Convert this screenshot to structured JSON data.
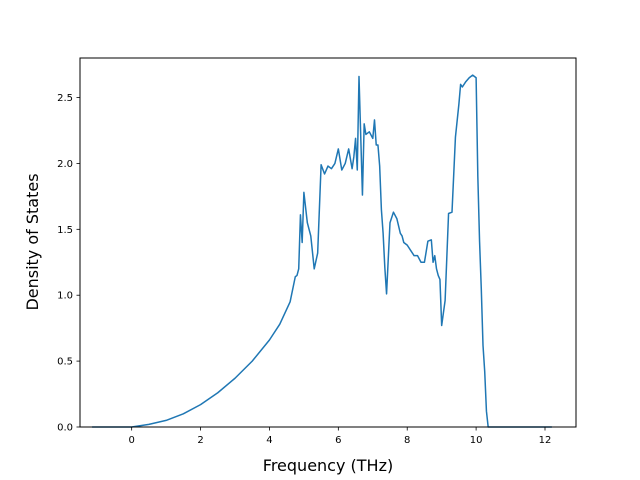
{
  "chart_data": {
    "type": "line",
    "title": "",
    "xlabel": "Frequency (THz)",
    "ylabel": "Density of States",
    "xlim": [
      -1.5,
      12.9
    ],
    "ylim": [
      0.0,
      2.8
    ],
    "xticks": [
      0,
      2,
      4,
      6,
      8,
      10,
      12
    ],
    "xtick_labels": [
      "0",
      "2",
      "4",
      "6",
      "8",
      "10",
      "12"
    ],
    "yticks": [
      0.0,
      0.5,
      1.0,
      1.5,
      2.0,
      2.5
    ],
    "ytick_labels": [
      "0.0",
      "0.5",
      "1.0",
      "1.5",
      "2.0",
      "2.5"
    ],
    "grid": false,
    "line_color": "#1f77b4",
    "series": [
      {
        "x": [
          -1.15,
          -0.5,
          0.0,
          0.5,
          1.0,
          1.5,
          2.0,
          2.5,
          3.0,
          3.5,
          4.0,
          4.3,
          4.6,
          4.75,
          4.8,
          4.85,
          4.9,
          4.95,
          5.0,
          5.1,
          5.2,
          5.3,
          5.4,
          5.5,
          5.6,
          5.7,
          5.8,
          5.9,
          6.0,
          6.1,
          6.2,
          6.3,
          6.4,
          6.45,
          6.5,
          6.55,
          6.6,
          6.7,
          6.75,
          6.8,
          6.9,
          7.0,
          7.05,
          7.1,
          7.15,
          7.2,
          7.25,
          7.3,
          7.35,
          7.4,
          7.5,
          7.6,
          7.7,
          7.8,
          7.85,
          7.9,
          8.0,
          8.1,
          8.2,
          8.3,
          8.4,
          8.5,
          8.6,
          8.7,
          8.75,
          8.8,
          8.85,
          8.9,
          8.95,
          9.0,
          9.1,
          9.2,
          9.3,
          9.4,
          9.5,
          9.55,
          9.6,
          9.7,
          9.8,
          9.9,
          10.0,
          10.05,
          10.1,
          10.15,
          10.2,
          10.25,
          10.3,
          10.35,
          10.4,
          10.5,
          10.6,
          10.7,
          10.8,
          10.9,
          11.0,
          11.05,
          11.1,
          11.2,
          11.5,
          12.0,
          12.2
        ],
        "y": [
          0.0,
          0.0,
          0.0,
          0.02,
          0.05,
          0.1,
          0.17,
          0.26,
          0.37,
          0.5,
          0.66,
          0.78,
          0.95,
          1.14,
          1.15,
          1.2,
          1.61,
          1.4,
          1.78,
          1.55,
          1.45,
          1.2,
          1.32,
          1.99,
          1.92,
          1.98,
          1.96,
          2.0,
          2.11,
          1.95,
          2.0,
          2.11,
          1.96,
          2.05,
          2.19,
          1.95,
          2.66,
          1.76,
          2.3,
          2.22,
          2.24,
          2.19,
          2.33,
          2.14,
          2.14,
          1.98,
          1.65,
          1.47,
          1.21,
          1.01,
          1.55,
          1.63,
          1.58,
          1.47,
          1.45,
          1.4,
          1.38,
          1.34,
          1.3,
          1.3,
          1.25,
          1.25,
          1.41,
          1.42,
          1.25,
          1.3,
          1.2,
          1.15,
          1.12,
          0.77,
          0.96,
          1.62,
          1.63,
          2.2,
          2.45,
          2.6,
          2.58,
          2.62,
          2.65,
          2.67,
          2.65,
          1.9,
          1.41,
          1.05,
          0.62,
          0.42,
          0.12,
          0.0,
          0.0,
          0.0,
          0.0,
          0.0,
          0.0,
          0.0,
          0.0,
          0.0,
          0.0,
          0.0,
          0.0,
          0.0,
          0.0
        ]
      }
    ]
  }
}
